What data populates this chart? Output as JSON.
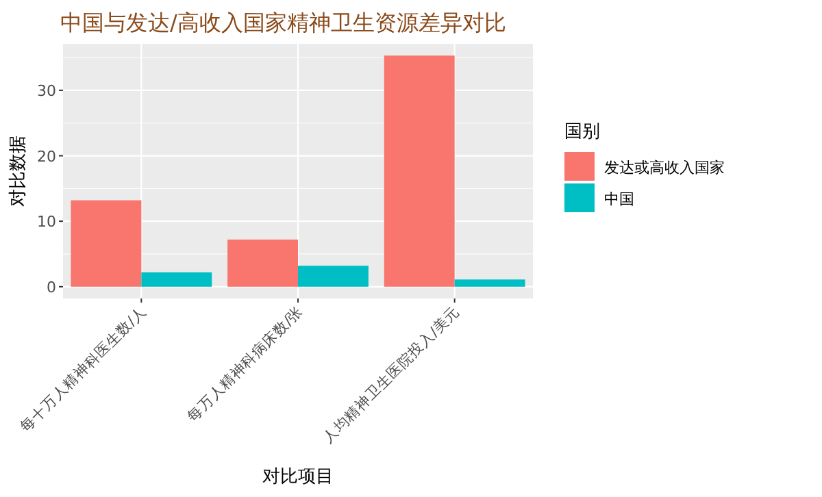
{
  "chart_data": {
    "type": "bar",
    "title": "中国与发达/高收入国家精神卫生资源差异对比",
    "xlabel": "对比项目",
    "ylabel": "对比数据",
    "legend_title": "国别",
    "categories": [
      "每十万人精神科医生数/人",
      "每万人精神科病床数/张",
      "人均精神卫生医院投入/美元"
    ],
    "series": [
      {
        "name": "发达或高收入国家",
        "color": "#f8766d",
        "values": [
          13.2,
          7.2,
          35.3
        ]
      },
      {
        "name": "中国",
        "color": "#00bfc4",
        "values": [
          2.2,
          3.2,
          1.1
        ]
      }
    ],
    "ylim": [
      -1.8,
      37.1
    ],
    "yticks": [
      0,
      10,
      20,
      30
    ],
    "grid": true,
    "legend": "right"
  }
}
